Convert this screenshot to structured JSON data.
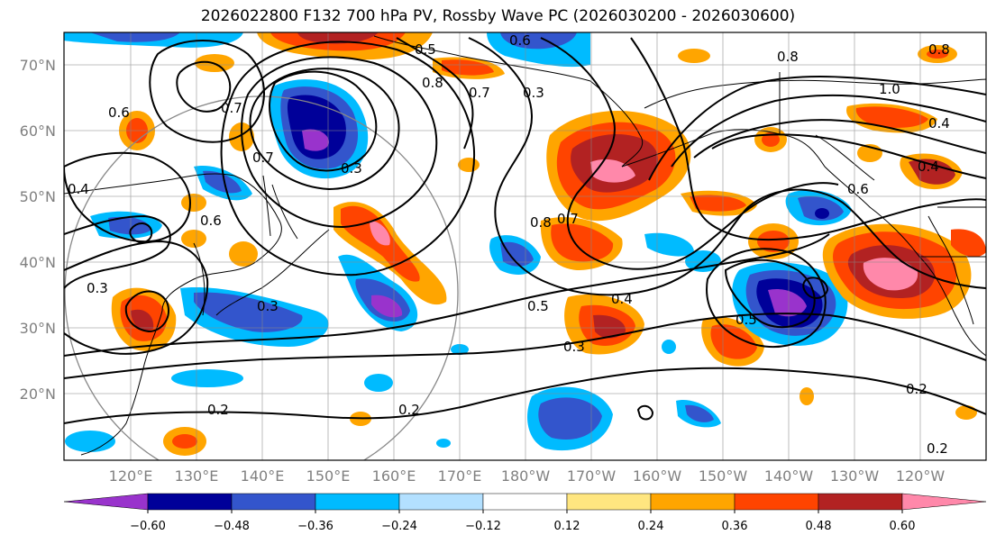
{
  "title": "2026022800 F132 700 hPa PV, Rossby Wave PC (2026030200 - 2026030600)",
  "map": {
    "lat_labels": [
      "70°N",
      "60°N",
      "50°N",
      "40°N",
      "30°N",
      "20°N"
    ],
    "lon_labels": [
      "120°E",
      "130°E",
      "140°E",
      "150°E",
      "160°E",
      "170°E",
      "180°W",
      "170°W",
      "160°W",
      "150°W",
      "140°W",
      "130°W",
      "120°W"
    ]
  },
  "colorbar": {
    "ticks": [
      "−0.60",
      "−0.48",
      "−0.36",
      "−0.24",
      "−0.12",
      "0.12",
      "0.24",
      "0.36",
      "0.48",
      "0.60"
    ],
    "colors": [
      "#9933cc",
      "#000099",
      "#3355cc",
      "#00bbff",
      "#b3e0ff",
      "#ffffff",
      "#ffe680",
      "#ffa500",
      "#ff4400",
      "#b22222",
      "#ff88aa"
    ]
  },
  "contour_labels": [
    {
      "text": "0.5"
    },
    {
      "text": "0.6"
    },
    {
      "text": "0.8"
    },
    {
      "text": "0.8"
    },
    {
      "text": "0.7"
    },
    {
      "text": "1.0"
    },
    {
      "text": "0.8"
    },
    {
      "text": "0.4"
    },
    {
      "text": "0.6"
    },
    {
      "text": "0.7"
    },
    {
      "text": "0.7"
    },
    {
      "text": "0.3"
    },
    {
      "text": "0.6"
    },
    {
      "text": "0.4"
    },
    {
      "text": "0.8"
    },
    {
      "text": "0.7"
    },
    {
      "text": "0.3"
    },
    {
      "text": "0.5"
    },
    {
      "text": "0.4"
    },
    {
      "text": "0.3"
    },
    {
      "text": "0.5"
    },
    {
      "text": "0.2"
    },
    {
      "text": "0.2"
    },
    {
      "text": "0.2"
    },
    {
      "text": "0.2"
    },
    {
      "text": "0.3"
    },
    {
      "text": "0.3"
    },
    {
      "text": "0.4"
    },
    {
      "text": "0.6"
    }
  ]
}
